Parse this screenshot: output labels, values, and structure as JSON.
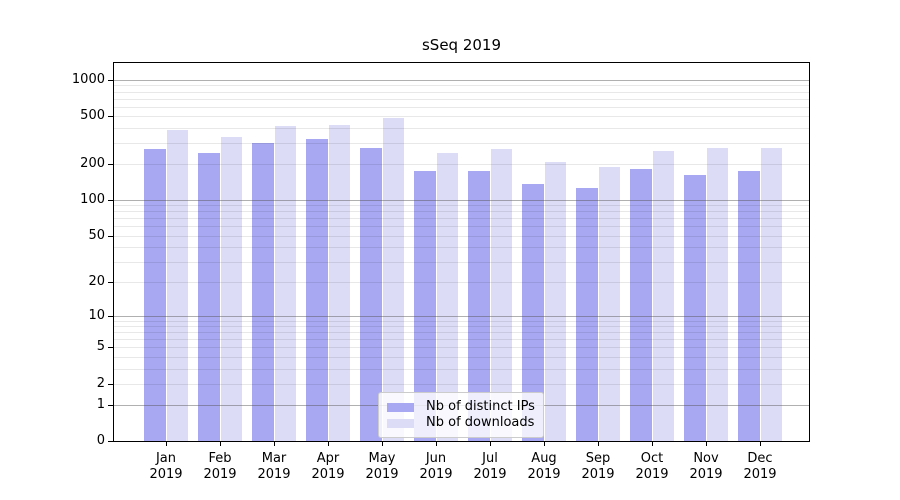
{
  "chart_data": {
    "type": "bar",
    "title": "sSeq 2019",
    "categories": [
      "Jan",
      "Feb",
      "Mar",
      "Apr",
      "May",
      "Jun",
      "Jul",
      "Aug",
      "Sep",
      "Oct",
      "Nov",
      "Dec"
    ],
    "category_year": "2019",
    "series": [
      {
        "name": "Nb of distinct IPs",
        "color": "#a8a8f2",
        "values": [
          267,
          245,
          297,
          322,
          270,
          176,
          173,
          136,
          125,
          181,
          161,
          174
        ]
      },
      {
        "name": "Nb of downloads",
        "color": "#dcdcf7",
        "values": [
          385,
          337,
          416,
          424,
          485,
          245,
          268,
          206,
          188,
          255,
          270,
          273
        ]
      }
    ],
    "xlabel": "",
    "ylabel": "",
    "y_axis": {
      "scale": "log1p",
      "ylim": [
        0,
        1383
      ],
      "tick_values": [
        0,
        1,
        2,
        5,
        10,
        20,
        50,
        100,
        200,
        500,
        1000
      ],
      "tick_labels": [
        "0",
        "1",
        "2",
        "5",
        "10",
        "20",
        "50",
        "100",
        "200",
        "500",
        "1000"
      ],
      "major_gridline_values": [
        1,
        10,
        100,
        1000
      ],
      "minor_gridline_values": [
        2,
        3,
        4,
        5,
        6,
        7,
        8,
        9,
        20,
        30,
        40,
        50,
        60,
        70,
        80,
        90,
        200,
        300,
        400,
        500,
        600,
        700,
        800,
        900
      ]
    },
    "grid": "on",
    "legend": {
      "position": "lower center"
    },
    "colors": {
      "grid_major": "#b0b0b0",
      "grid_minor": "#e8e8e8",
      "axis": "#000000",
      "legend_border": "#cccccc",
      "legend_background": "rgba(255,255,255,0.8)"
    }
  }
}
